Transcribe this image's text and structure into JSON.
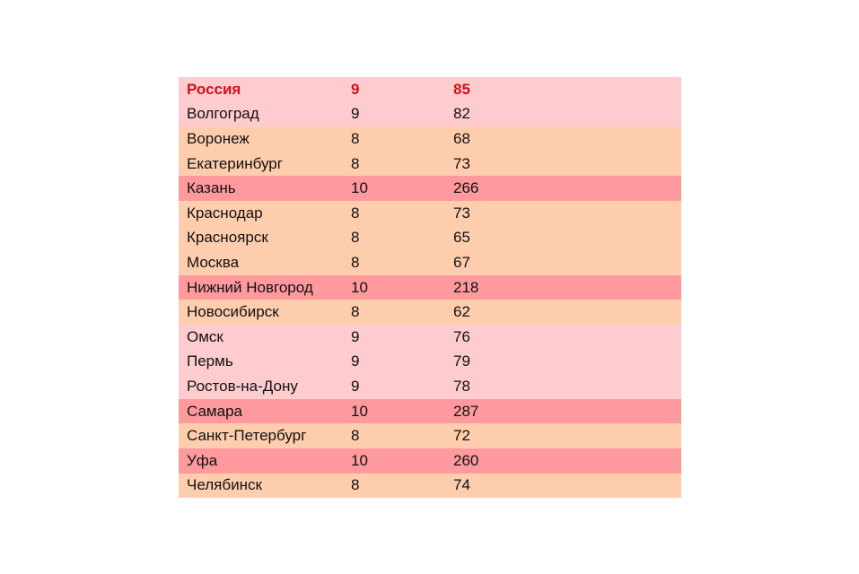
{
  "rows": [
    {
      "city": "Россия",
      "a": "9",
      "b": "85",
      "bg": "pink",
      "highlight": true
    },
    {
      "city": "Волгоград",
      "a": "9",
      "b": "82",
      "bg": "pink"
    },
    {
      "city": "Воронеж",
      "a": "8",
      "b": "68",
      "bg": "peach"
    },
    {
      "city": "Екатеринбург",
      "a": "8",
      "b": "73",
      "bg": "peach"
    },
    {
      "city": "Казань",
      "a": "10",
      "b": "266",
      "bg": "red"
    },
    {
      "city": "Краснодар",
      "a": "8",
      "b": "73",
      "bg": "peach"
    },
    {
      "city": "Красноярск",
      "a": "8",
      "b": "65",
      "bg": "peach"
    },
    {
      "city": "Москва",
      "a": "8",
      "b": "67",
      "bg": "peach"
    },
    {
      "city": "Нижний Новгород",
      "a": "10",
      "b": "218",
      "bg": "red"
    },
    {
      "city": "Новосибирск",
      "a": "8",
      "b": "62",
      "bg": "peach"
    },
    {
      "city": "Омск",
      "a": "9",
      "b": "76",
      "bg": "pink"
    },
    {
      "city": "Пермь",
      "a": "9",
      "b": "79",
      "bg": "pink"
    },
    {
      "city": "Ростов-на-Дону",
      "a": "9",
      "b": "78",
      "bg": "pink"
    },
    {
      "city": "Самара",
      "a": "10",
      "b": "287",
      "bg": "red"
    },
    {
      "city": "Санкт-Петербург",
      "a": "8",
      "b": "72",
      "bg": "peach"
    },
    {
      "city": "Уфа",
      "a": "10",
      "b": "260",
      "bg": "red"
    },
    {
      "city": "Челябинск",
      "a": "8",
      "b": "74",
      "bg": "peach"
    }
  ],
  "colors": {
    "pink": "#fecbcf",
    "peach": "#fdcdae",
    "red": "#fe9a9d",
    "highlight_text": "#d10f1c"
  }
}
